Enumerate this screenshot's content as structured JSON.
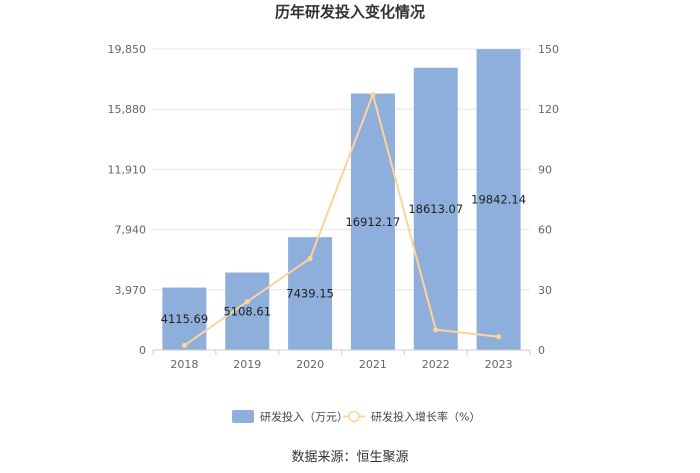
{
  "chart_data": {
    "type": "bar+line",
    "title": "历年研发投入变化情况",
    "categories": [
      "2018",
      "2019",
      "2020",
      "2021",
      "2022",
      "2023"
    ],
    "series": [
      {
        "name": "研发投入（万元）",
        "type": "bar",
        "axis": "left",
        "values": [
          4115.69,
          5108.61,
          7439.15,
          16912.17,
          18613.07,
          19842.14
        ],
        "labels": [
          "4115.69",
          "5108.61",
          "7439.15",
          "16912.17",
          "18613.07",
          "19842.14"
        ],
        "color": "#8eafdb"
      },
      {
        "name": "研发投入增长率（%）",
        "type": "line",
        "axis": "right",
        "values": [
          2.3,
          24.1,
          45.6,
          127.3,
          10.1,
          6.6
        ],
        "color": "#fbd49a"
      }
    ],
    "y_left": {
      "min": 0,
      "max": 19850,
      "ticks": [
        "0",
        "3,970",
        "7,940",
        "11,910",
        "15,880",
        "19,850"
      ]
    },
    "y_right": {
      "min": 0,
      "max": 150,
      "ticks": [
        "0",
        "30",
        "60",
        "90",
        "120",
        "150"
      ]
    },
    "grid": true,
    "legend_position": "bottom-center"
  },
  "source": "数据来源：恒生聚源"
}
